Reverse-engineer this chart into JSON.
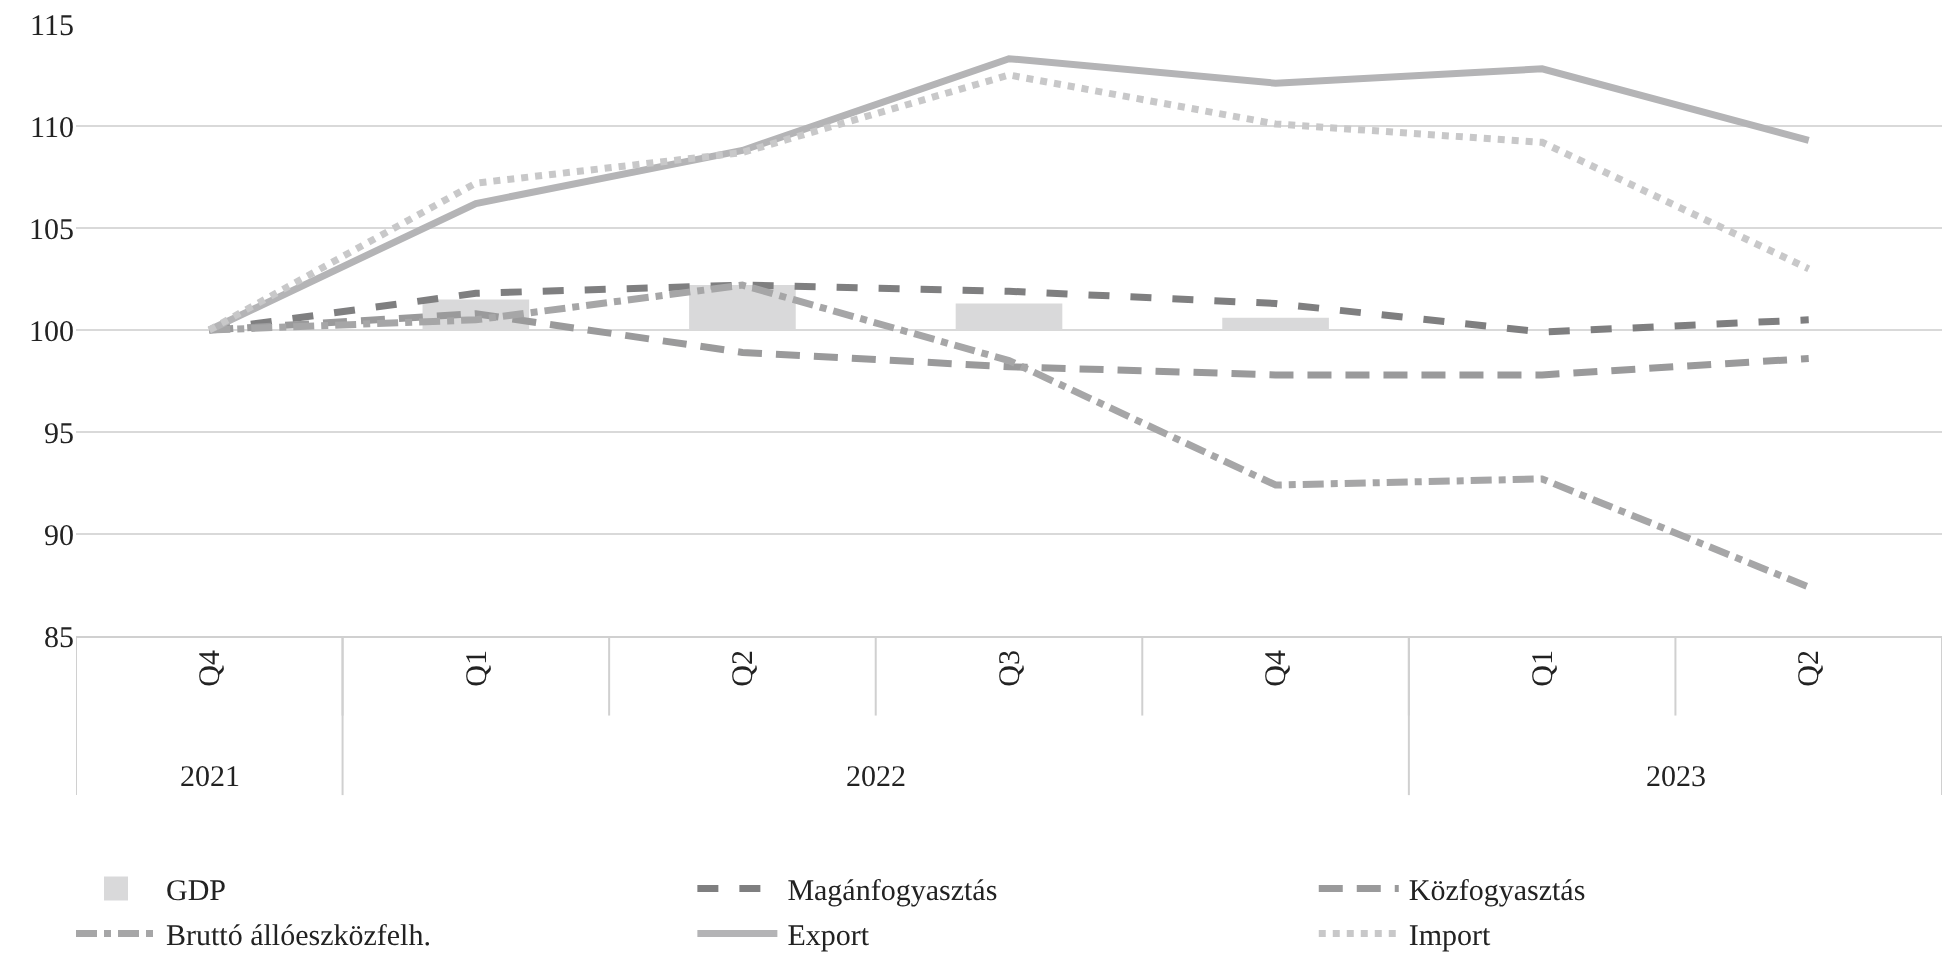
{
  "chart_data": {
    "type": "line",
    "categories": [
      "Q4",
      "Q1",
      "Q2",
      "Q3",
      "Q4",
      "Q1",
      "Q2"
    ],
    "annotations": [
      "2021",
      "2022",
      "2023"
    ],
    "series": [
      {
        "name": "GDP",
        "type": "bar",
        "color": "#d9d9da",
        "base": [
          null,
          100,
          100,
          100,
          100,
          null,
          null
        ],
        "values": [
          null,
          1.5,
          2.2,
          1.3,
          0.6,
          null,
          null
        ]
      },
      {
        "name": "Magánfogyasztás",
        "color": "#7f7f80",
        "line_style": "dashed",
        "values": [
          100,
          101.8,
          102.2,
          101.9,
          101.3,
          99.9,
          100.5
        ]
      },
      {
        "name": "Közfogyasztás",
        "color": "#9a9a9b",
        "line_style": "longdash",
        "values": [
          100,
          100.8,
          98.9,
          98.2,
          97.8,
          97.8,
          98.6
        ]
      },
      {
        "name": "Bruttó állóeszközfelh.",
        "color": "#a6a6a7",
        "line_style": "dashdot",
        "values": [
          100,
          100.5,
          102.2,
          98.5,
          92.4,
          92.7,
          87.4
        ]
      },
      {
        "name": "Export",
        "color": "#b4b4b6",
        "line_style": "solid",
        "values": [
          100,
          106.2,
          108.8,
          113.3,
          112.1,
          112.8,
          109.3
        ]
      },
      {
        "name": "Import",
        "color": "#c8c8c9",
        "line_style": "dotted",
        "values": [
          100,
          107.2,
          108.7,
          112.5,
          110.1,
          109.2,
          103
        ]
      }
    ],
    "ylim": [
      85,
      115
    ],
    "yticks": [
      85,
      90,
      95,
      100,
      105,
      110,
      115
    ],
    "grid": "y",
    "legend": "bottom",
    "marker": "none"
  }
}
